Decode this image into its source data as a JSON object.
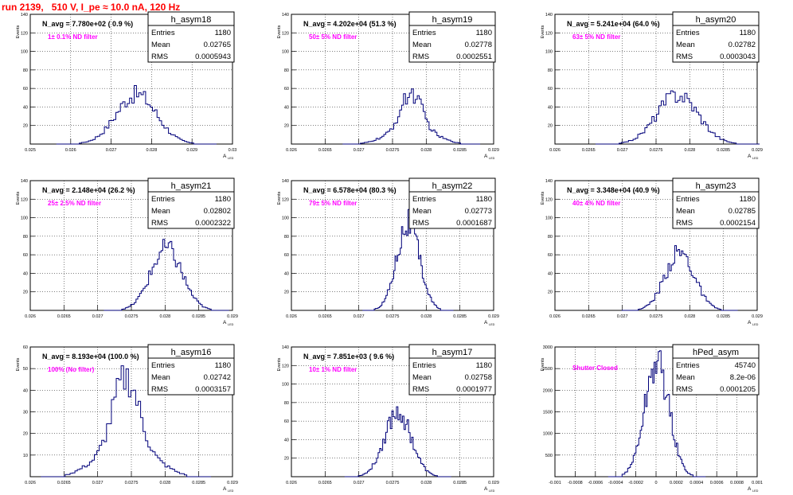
{
  "header": {
    "run_title": "run 2139,   510 V, I_pe ≈ 10.0 nA, 120 Hz"
  },
  "chart_data": [
    {
      "type": "histogram",
      "name": "h_asym18",
      "mean": 0.02765,
      "rms": 0.0005943,
      "entries": 1180,
      "navg": "N_avg = 7.780e+02 ( 0.9 %)",
      "filter": "1± 0.1% ND filter",
      "stats": [
        [
          "Entries",
          "1180"
        ],
        [
          "Mean",
          "0.02765"
        ],
        [
          "RMS",
          "0.0005943"
        ]
      ],
      "xlim": [
        0.0245,
        0.0305
      ],
      "ylim": [
        0,
        140
      ],
      "xticks": [
        "0.025",
        "0.026",
        "0.027",
        "0.028",
        "0.029",
        "0.03"
      ],
      "yticks": [
        "20",
        "40",
        "60",
        "80",
        "100",
        "120",
        "140"
      ],
      "xlabel": "A",
      "xlabel_sub": "LED",
      "ylabel": "Events",
      "peak": 55,
      "bimodal": false
    },
    {
      "type": "histogram",
      "name": "h_asym19",
      "mean": 0.02778,
      "rms": 0.0002551,
      "entries": 1180,
      "navg": "N_avg = 4.202e+04 (51.3 %)",
      "filter": "50± 5% ND filter",
      "stats": [
        [
          "Entries",
          "1180"
        ],
        [
          "Mean",
          "0.02778"
        ],
        [
          "RMS",
          "0.0002551"
        ]
      ],
      "xlim": [
        0.026,
        0.029
      ],
      "ylim": [
        0,
        140
      ],
      "xticks": [
        "0.026",
        "0.0265",
        "0.027",
        "0.0275",
        "0.028",
        "0.0285",
        "0.029"
      ],
      "yticks": [
        "20",
        "40",
        "60",
        "80",
        "100",
        "120",
        "140"
      ],
      "xlabel": "A",
      "xlabel_sub": "LED",
      "ylabel": "Events",
      "peak": 56,
      "bimodal": true
    },
    {
      "type": "histogram",
      "name": "h_asym20",
      "mean": 0.02782,
      "rms": 0.0003043,
      "entries": 1180,
      "navg": "N_avg = 5.241e+04 (64.0 %)",
      "filter": "63± 5% ND filter",
      "stats": [
        [
          "Entries",
          "1180"
        ],
        [
          "Mean",
          "0.02782"
        ],
        [
          "RMS",
          "0.0003043"
        ]
      ],
      "xlim": [
        0.026,
        0.029
      ],
      "ylim": [
        0,
        140
      ],
      "xticks": [
        "0.026",
        "0.0265",
        "0.027",
        "0.0275",
        "0.028",
        "0.0285",
        "0.029"
      ],
      "yticks": [
        "20",
        "40",
        "60",
        "80",
        "100",
        "120",
        "140"
      ],
      "xlabel": "A",
      "xlabel_sub": "LED",
      "ylabel": "Events",
      "peak": 55,
      "bimodal": false
    },
    {
      "type": "histogram",
      "name": "h_asym21",
      "mean": 0.02802,
      "rms": 0.0002322,
      "entries": 1180,
      "navg": "N_avg = 2.148e+04 (26.2 %)",
      "filter": "25± 2.5% ND filter",
      "stats": [
        [
          "Entries",
          "1180"
        ],
        [
          "Mean",
          "0.02802"
        ],
        [
          "RMS",
          "0.0002322"
        ]
      ],
      "xlim": [
        0.026,
        0.029
      ],
      "ylim": [
        0,
        140
      ],
      "xticks": [
        "0.026",
        "0.0265",
        "0.027",
        "0.0275",
        "0.028",
        "0.0285",
        "0.029"
      ],
      "yticks": [
        "20",
        "40",
        "60",
        "80",
        "100",
        "120",
        "140"
      ],
      "xlabel": "A",
      "xlabel_sub": "LED",
      "ylabel": "Events",
      "peak": 68,
      "bimodal": false
    },
    {
      "type": "histogram",
      "name": "h_asym22",
      "mean": 0.02773,
      "rms": 0.0001687,
      "entries": 1180,
      "navg": "N_avg = 6.578e+04 (80.3 %)",
      "filter": "79± 5% ND filter",
      "stats": [
        [
          "Entries",
          "1180"
        ],
        [
          "Mean",
          "0.02773"
        ],
        [
          "RMS",
          "0.0001687"
        ]
      ],
      "xlim": [
        0.026,
        0.029
      ],
      "ylim": [
        0,
        140
      ],
      "xticks": [
        "0.026",
        "0.0265",
        "0.027",
        "0.0275",
        "0.028",
        "0.0285",
        "0.029"
      ],
      "yticks": [
        "20",
        "40",
        "60",
        "80",
        "100",
        "120",
        "140"
      ],
      "xlabel": "A",
      "xlabel_sub": "LED",
      "ylabel": "Events",
      "peak": 96,
      "bimodal": false
    },
    {
      "type": "histogram",
      "name": "h_asym23",
      "mean": 0.02785,
      "rms": 0.0002154,
      "entries": 1180,
      "navg": "N_avg = 3.348e+04 (40.9 %)",
      "filter": "40± 4% ND filter",
      "stats": [
        [
          "Entries",
          "1180"
        ],
        [
          "Mean",
          "0.02785"
        ],
        [
          "RMS",
          "0.0002154"
        ]
      ],
      "xlim": [
        0.026,
        0.029
      ],
      "ylim": [
        0,
        140
      ],
      "xticks": [
        "0.026",
        "0.0265",
        "0.027",
        "0.0275",
        "0.028",
        "0.0285",
        "0.029"
      ],
      "yticks": [
        "20",
        "40",
        "60",
        "80",
        "100",
        "120",
        "140"
      ],
      "xlabel": "A",
      "xlabel_sub": "LED",
      "ylabel": "Events",
      "peak": 64,
      "bimodal": false
    },
    {
      "type": "histogram",
      "name": "h_asym16",
      "mean": 0.02742,
      "rms": 0.0003157,
      "entries": 1180,
      "navg": "N_avg = 8.193e+04 (100.0 %)",
      "filter": "100% (No filter)",
      "stats": [
        [
          "Entries",
          "1180"
        ],
        [
          "Mean",
          "0.02742"
        ],
        [
          "RMS",
          "0.0003157"
        ]
      ],
      "xlim": [
        0.026,
        0.029
      ],
      "ylim": [
        0,
        60
      ],
      "xticks": [
        "0.026",
        "0.0265",
        "0.027",
        "0.0275",
        "0.028",
        "0.0285",
        "0.029"
      ],
      "yticks": [
        "10",
        "20",
        "30",
        "40",
        "50",
        "60"
      ],
      "xlabel": "A",
      "xlabel_sub": "LED",
      "ylabel": "Events",
      "peak": 47,
      "bimodal": true
    },
    {
      "type": "histogram",
      "name": "h_asym17",
      "mean": 0.02758,
      "rms": 0.0001977,
      "entries": 1180,
      "navg": "N_avg = 7.851e+03 ( 9.6 %)",
      "filter": "10± 1% ND filter",
      "stats": [
        [
          "Entries",
          "1180"
        ],
        [
          "Mean",
          "0.02758"
        ],
        [
          "RMS",
          "0.0001977"
        ]
      ],
      "xlim": [
        0.026,
        0.029
      ],
      "ylim": [
        0,
        140
      ],
      "xticks": [
        "0.026",
        "0.0265",
        "0.027",
        "0.0275",
        "0.028",
        "0.0285",
        "0.029"
      ],
      "yticks": [
        "20",
        "40",
        "60",
        "80",
        "100",
        "120",
        "140"
      ],
      "xlabel": "A",
      "xlabel_sub": "LED",
      "ylabel": "Events",
      "peak": 72,
      "bimodal": false
    },
    {
      "type": "histogram",
      "name": "hPed_asym",
      "mean": 8.2e-06,
      "rms": 0.0001205,
      "entries": 45740,
      "navg": "",
      "filter": "Shutter Closed",
      "stats": [
        [
          "Entries",
          "45740"
        ],
        [
          "Mean",
          "8.2e-06"
        ],
        [
          "RMS",
          "0.0001205"
        ]
      ],
      "xlim": [
        -0.001,
        0.001
      ],
      "ylim": [
        0,
        3500
      ],
      "xticks": [
        "-0.001",
        "-0.0008",
        "-0.0006",
        "-0.0004",
        "-0.0002",
        "0",
        "0.0002",
        "0.0004",
        "0.0006",
        "0.0008",
        "0.001"
      ],
      "yticks": [
        "500",
        "1000",
        "1500",
        "2000",
        "2500",
        "3000"
      ],
      "xlabel": "A",
      "xlabel_sub": "LED",
      "ylabel": "Events",
      "peak": 3150,
      "bimodal": false
    }
  ]
}
